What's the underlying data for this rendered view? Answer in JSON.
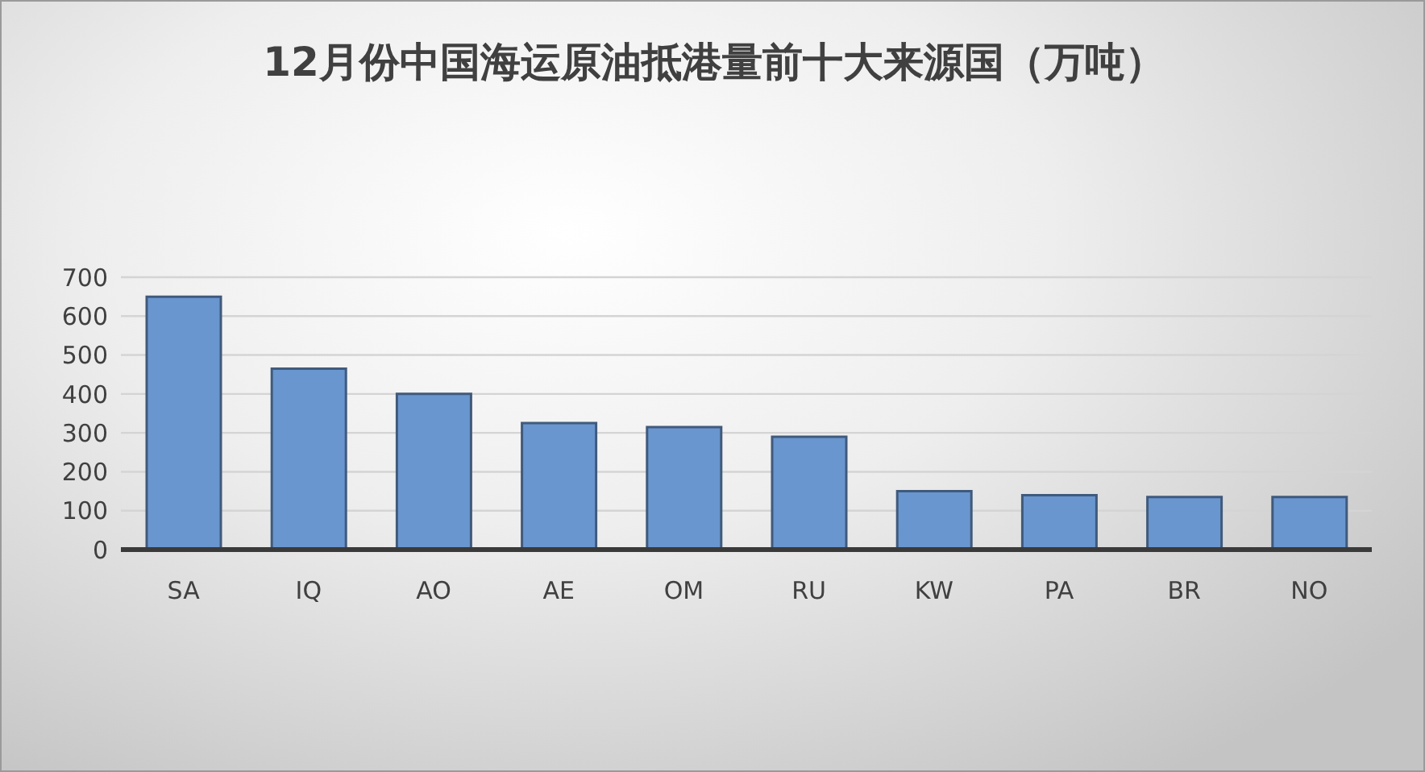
{
  "chart_data": {
    "type": "bar",
    "title": "12月份中国海运原油抵港量前十大来源国（万吨）",
    "categories": [
      "SA",
      "IQ",
      "AO",
      "AE",
      "OM",
      "RU",
      "KW",
      "PA",
      "BR",
      "NO"
    ],
    "values": [
      650,
      465,
      400,
      325,
      315,
      290,
      150,
      140,
      135,
      135
    ],
    "color": "#6a96cf",
    "ylim": [
      0,
      700
    ],
    "yticks": [
      0,
      100,
      200,
      300,
      400,
      500,
      600,
      700
    ],
    "grid": "y"
  }
}
